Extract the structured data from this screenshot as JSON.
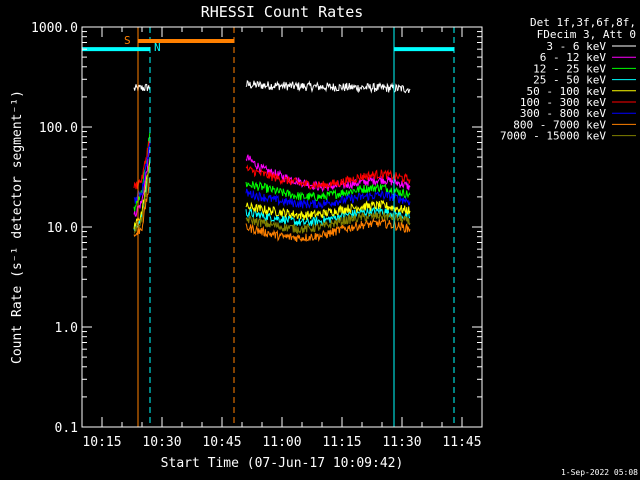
{
  "chart_data": {
    "type": "line",
    "title": "RHESSI Count Rates",
    "xlabel": "Start Time (07-Jun-17 10:09:42)",
    "ylabel": "Count Rate (s⁻¹ detector segment⁻¹)",
    "y_scale": "log",
    "ylim": [
      0.1,
      1000
    ],
    "x_range_minutes": [
      "10:10",
      "11:50"
    ],
    "x_ticks": [
      "10:15",
      "10:30",
      "10:45",
      "11:00",
      "11:15",
      "11:30",
      "11:45"
    ],
    "y_ticks": [
      "0.1",
      "1.0",
      "10.0",
      "100.0",
      "1000.0"
    ],
    "legend_header": [
      "Det 1f,3f,6f,8f,",
      "FDecim 3, Att 0"
    ],
    "legend_position": "right",
    "flags": [
      {
        "label": "S",
        "color": "#ff8000",
        "start": "10:24",
        "end": "10:48"
      },
      {
        "label": "N",
        "color": "#00ffff",
        "start": "10:27",
        "end": "10:27"
      }
    ],
    "vertical_markers": [
      {
        "time": "10:10",
        "color": "#00ffff",
        "style": "solid"
      },
      {
        "time": "10:24",
        "color": "#ff8000",
        "style": "solid"
      },
      {
        "time": "10:27",
        "color": "#00ffff",
        "style": "dashed"
      },
      {
        "time": "10:48",
        "color": "#ff8000",
        "style": "dashed"
      },
      {
        "time": "11:28",
        "color": "#00ffff",
        "style": "solid"
      },
      {
        "time": "11:43",
        "color": "#00ffff",
        "style": "dashed"
      }
    ],
    "night_bars": [
      {
        "color": "#00ffff",
        "start": "10:10",
        "end": "10:27",
        "y": 600
      },
      {
        "color": "#00ffff",
        "start": "11:28",
        "end": "11:43",
        "y": 600
      }
    ],
    "series": [
      {
        "name": "3 - 6 keV",
        "color": "#ffffff",
        "segments": [
          {
            "x": [
              "10:23",
              "10:25",
              "10:27"
            ],
            "y": [
              240,
              245,
              250
            ]
          },
          {
            "x": [
              "10:51",
              "10:55",
              "11:00",
              "11:05",
              "11:10",
              "11:15",
              "11:20",
              "11:25",
              "11:30",
              "11:32"
            ],
            "y": [
              265,
              262,
              258,
              255,
              252,
              250,
              248,
              246,
              242,
              240
            ]
          }
        ]
      },
      {
        "name": "6 - 12 keV",
        "color": "#ff00ff",
        "segments": [
          {
            "x": [
              "10:23",
              "10:25",
              "10:27"
            ],
            "y": [
              13,
              18,
              60
            ]
          },
          {
            "x": [
              "10:51",
              "10:55",
              "11:00",
              "11:05",
              "11:10",
              "11:15",
              "11:20",
              "11:25",
              "11:30",
              "11:32"
            ],
            "y": [
              50,
              38,
              32,
              28,
              25,
              26,
              28,
              30,
              27,
              25
            ]
          }
        ]
      },
      {
        "name": "12 - 25 keV",
        "color": "#00ff00",
        "segments": [
          {
            "x": [
              "10:23",
              "10:25",
              "10:27"
            ],
            "y": [
              15,
              22,
              90
            ]
          },
          {
            "x": [
              "10:51",
              "10:55",
              "11:00",
              "11:05",
              "11:10",
              "11:15",
              "11:20",
              "11:25",
              "11:30",
              "11:32"
            ],
            "y": [
              27,
              25,
              22,
              20,
              20,
              22,
              24,
              25,
              22,
              21
            ]
          }
        ]
      },
      {
        "name": "25 - 50 keV",
        "color": "#00ffff",
        "segments": [
          {
            "x": [
              "10:23",
              "10:25",
              "10:27"
            ],
            "y": [
              9,
              13,
              45
            ]
          },
          {
            "x": [
              "10:51",
              "10:55",
              "11:00",
              "11:05",
              "11:10",
              "11:15",
              "11:20",
              "11:25",
              "11:30",
              "11:32"
            ],
            "y": [
              14,
              13,
              12,
              11,
              11.5,
              13,
              14,
              14.5,
              13,
              12.5
            ]
          }
        ]
      },
      {
        "name": "50 - 100 keV",
        "color": "#ffff00",
        "segments": [
          {
            "x": [
              "10:23",
              "10:25",
              "10:27"
            ],
            "y": [
              10,
              14,
              50
            ]
          },
          {
            "x": [
              "10:51",
              "10:55",
              "11:00",
              "11:05",
              "11:10",
              "11:15",
              "11:20",
              "11:25",
              "11:30",
              "11:32"
            ],
            "y": [
              16,
              15,
              14,
              13,
              13.5,
              15,
              16,
              16.5,
              15,
              14.5
            ]
          }
        ]
      },
      {
        "name": "100 - 300 keV",
        "color": "#ff0000",
        "segments": [
          {
            "x": [
              "10:23",
              "10:25",
              "10:27"
            ],
            "y": [
              25,
              30,
              80
            ]
          },
          {
            "x": [
              "10:51",
              "10:55",
              "11:00",
              "11:05",
              "11:10",
              "11:15",
              "11:20",
              "11:25",
              "11:30",
              "11:32"
            ],
            "y": [
              38,
              34,
              30,
              27,
              26,
              28,
              32,
              34,
              31,
              30
            ]
          }
        ]
      },
      {
        "name": "300 - 800 keV",
        "color": "#0000ff",
        "segments": [
          {
            "x": [
              "10:23",
              "10:25",
              "10:27"
            ],
            "y": [
              18,
              23,
              70
            ]
          },
          {
            "x": [
              "10:51",
              "10:55",
              "11:00",
              "11:05",
              "11:10",
              "11:15",
              "11:20",
              "11:25",
              "11:30",
              "11:32"
            ],
            "y": [
              22,
              20,
              18,
              17,
              17,
              18.5,
              20,
              21,
              19,
              18
            ]
          }
        ]
      },
      {
        "name": "800 - 7000 keV",
        "color": "#ff8000",
        "segments": [
          {
            "x": [
              "10:23",
              "10:25",
              "10:27"
            ],
            "y": [
              8,
              10,
              30
            ]
          },
          {
            "x": [
              "10:51",
              "10:55",
              "11:00",
              "11:05",
              "11:10",
              "11:15",
              "11:20",
              "11:25",
              "11:30",
              "11:32"
            ],
            "y": [
              10,
              9,
              8,
              7.8,
              8.2,
              9.5,
              10.5,
              11,
              10,
              9.5
            ]
          }
        ]
      },
      {
        "name": "7000 - 15000 keV",
        "color": "#808000",
        "segments": [
          {
            "x": [
              "10:23",
              "10:25",
              "10:27"
            ],
            "y": [
              9,
              12,
              40
            ]
          },
          {
            "x": [
              "10:51",
              "10:55",
              "11:00",
              "11:05",
              "11:10",
              "11:15",
              "11:20",
              "11:25",
              "11:30",
              "11:32"
            ],
            "y": [
              12,
              11,
              10,
              9.5,
              10,
              11.5,
              12.5,
              13,
              12,
              11
            ]
          }
        ]
      }
    ]
  },
  "footer_date": "1-Sep-2022 05:08"
}
